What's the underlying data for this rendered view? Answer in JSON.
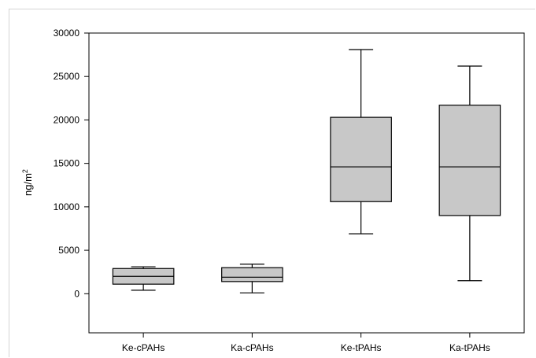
{
  "chart_data": {
    "type": "box",
    "title": "",
    "xlabel": "",
    "ylabel": "ng/m",
    "ylabel_superscript": "2",
    "ylim": [
      -4500,
      30000
    ],
    "yticks": [
      0,
      5000,
      10000,
      15000,
      20000,
      25000,
      30000
    ],
    "ytick_labels": [
      "0",
      "5000",
      "10000",
      "15000",
      "20000",
      "25000",
      "30000"
    ],
    "grid": false,
    "box_fill": "#c8c8c8",
    "line_color": "#000000",
    "categories": [
      "Ke-cPAHs",
      "Ka-cPAHs",
      "Ke-tPAHs",
      "Ka-tPAHs"
    ],
    "boxes": [
      {
        "category": "Ke-cPAHs",
        "whisker_low": 400,
        "q1": 1100,
        "median": 2000,
        "q3": 2900,
        "whisker_high": 3100
      },
      {
        "category": "Ka-cPAHs",
        "whisker_low": 100,
        "q1": 1400,
        "median": 1900,
        "q3": 3000,
        "whisker_high": 3400
      },
      {
        "category": "Ke-tPAHs",
        "whisker_low": 6900,
        "q1": 10600,
        "median": 14600,
        "q3": 20300,
        "whisker_high": 28100
      },
      {
        "category": "Ka-tPAHs",
        "whisker_low": 1500,
        "q1": 9000,
        "median": 14600,
        "q3": 21700,
        "whisker_high": 26200
      }
    ]
  }
}
